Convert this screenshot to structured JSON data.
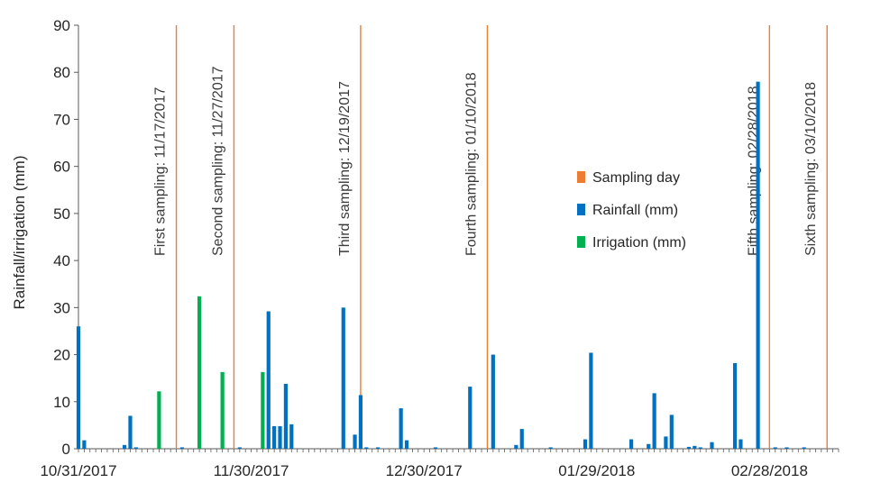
{
  "chart_data": {
    "type": "bar",
    "title": "",
    "xlabel": "",
    "ylabel": "Rainfall/irrigation (mm)",
    "ylim": [
      0,
      90
    ],
    "yticks": [
      0,
      10,
      20,
      30,
      40,
      50,
      60,
      70,
      80,
      90
    ],
    "x_range_days": [
      0,
      132
    ],
    "xtick_labels": [
      {
        "label": "10/31/2017",
        "day": 0
      },
      {
        "label": "11/30/2017",
        "day": 30
      },
      {
        "label": "12/30/2017",
        "day": 60
      },
      {
        "label": "01/29/2018",
        "day": 90
      },
      {
        "label": "02/28/2018",
        "day": 120
      }
    ],
    "legend": [
      {
        "key": "sampling",
        "label": "Sampling day",
        "color": "#ED7D31"
      },
      {
        "key": "rainfall",
        "label": "Rainfall (mm)",
        "color": "#0070C0"
      },
      {
        "key": "irrigation",
        "label": "Irrigation (mm)",
        "color": "#00B050"
      }
    ],
    "series": [
      {
        "name": "Rainfall (mm)",
        "color": "#0070C0",
        "points": [
          {
            "day": 0,
            "value": 26
          },
          {
            "day": 1,
            "value": 1.8
          },
          {
            "day": 8,
            "value": 0.8
          },
          {
            "day": 9,
            "value": 7
          },
          {
            "day": 10,
            "value": 0.3
          },
          {
            "day": 18,
            "value": 0.3
          },
          {
            "day": 28,
            "value": 0.3
          },
          {
            "day": 33,
            "value": 29.2
          },
          {
            "day": 34,
            "value": 4.8
          },
          {
            "day": 35,
            "value": 4.8
          },
          {
            "day": 36,
            "value": 13.8
          },
          {
            "day": 37,
            "value": 5.2
          },
          {
            "day": 46,
            "value": 30
          },
          {
            "day": 48,
            "value": 3
          },
          {
            "day": 49,
            "value": 11.4
          },
          {
            "day": 50,
            "value": 0.3
          },
          {
            "day": 52,
            "value": 0.3
          },
          {
            "day": 56,
            "value": 8.6
          },
          {
            "day": 57,
            "value": 1.8
          },
          {
            "day": 62,
            "value": 0.3
          },
          {
            "day": 68,
            "value": 13.2
          },
          {
            "day": 72,
            "value": 20
          },
          {
            "day": 76,
            "value": 0.8
          },
          {
            "day": 77,
            "value": 4.2
          },
          {
            "day": 82,
            "value": 0.3
          },
          {
            "day": 88,
            "value": 2
          },
          {
            "day": 89,
            "value": 20.4
          },
          {
            "day": 96,
            "value": 2
          },
          {
            "day": 99,
            "value": 1
          },
          {
            "day": 100,
            "value": 11.8
          },
          {
            "day": 102,
            "value": 2.6
          },
          {
            "day": 103,
            "value": 7.2
          },
          {
            "day": 106,
            "value": 0.4
          },
          {
            "day": 107,
            "value": 0.6
          },
          {
            "day": 108,
            "value": 0.3
          },
          {
            "day": 110,
            "value": 1.4
          },
          {
            "day": 114,
            "value": 18.2
          },
          {
            "day": 115,
            "value": 2
          },
          {
            "day": 118,
            "value": 78
          },
          {
            "day": 121,
            "value": 0.3
          },
          {
            "day": 123,
            "value": 0.3
          },
          {
            "day": 126,
            "value": 0.3
          }
        ]
      },
      {
        "name": "Irrigation (mm)",
        "color": "#00B050",
        "points": [
          {
            "day": 14,
            "value": 12.2
          },
          {
            "day": 21,
            "value": 32.4
          },
          {
            "day": 25,
            "value": 16.3
          },
          {
            "day": 32,
            "value": 16.3
          }
        ]
      }
    ],
    "sampling_days": [
      {
        "label": "First sampling: 11/17/2017",
        "day": 17
      },
      {
        "label": "Second sampling: 11/27/2017",
        "day": 27
      },
      {
        "label": "Third sampling: 12/19/2017",
        "day": 49
      },
      {
        "label": "Fourth sampling: 01/10/2018",
        "day": 71
      },
      {
        "label": "Fifth sampling: 02/28/2018",
        "day": 120
      },
      {
        "label": "Sixth sampling: 03/10/2018",
        "day": 130
      }
    ],
    "sampling_color": "#ED7D31"
  }
}
